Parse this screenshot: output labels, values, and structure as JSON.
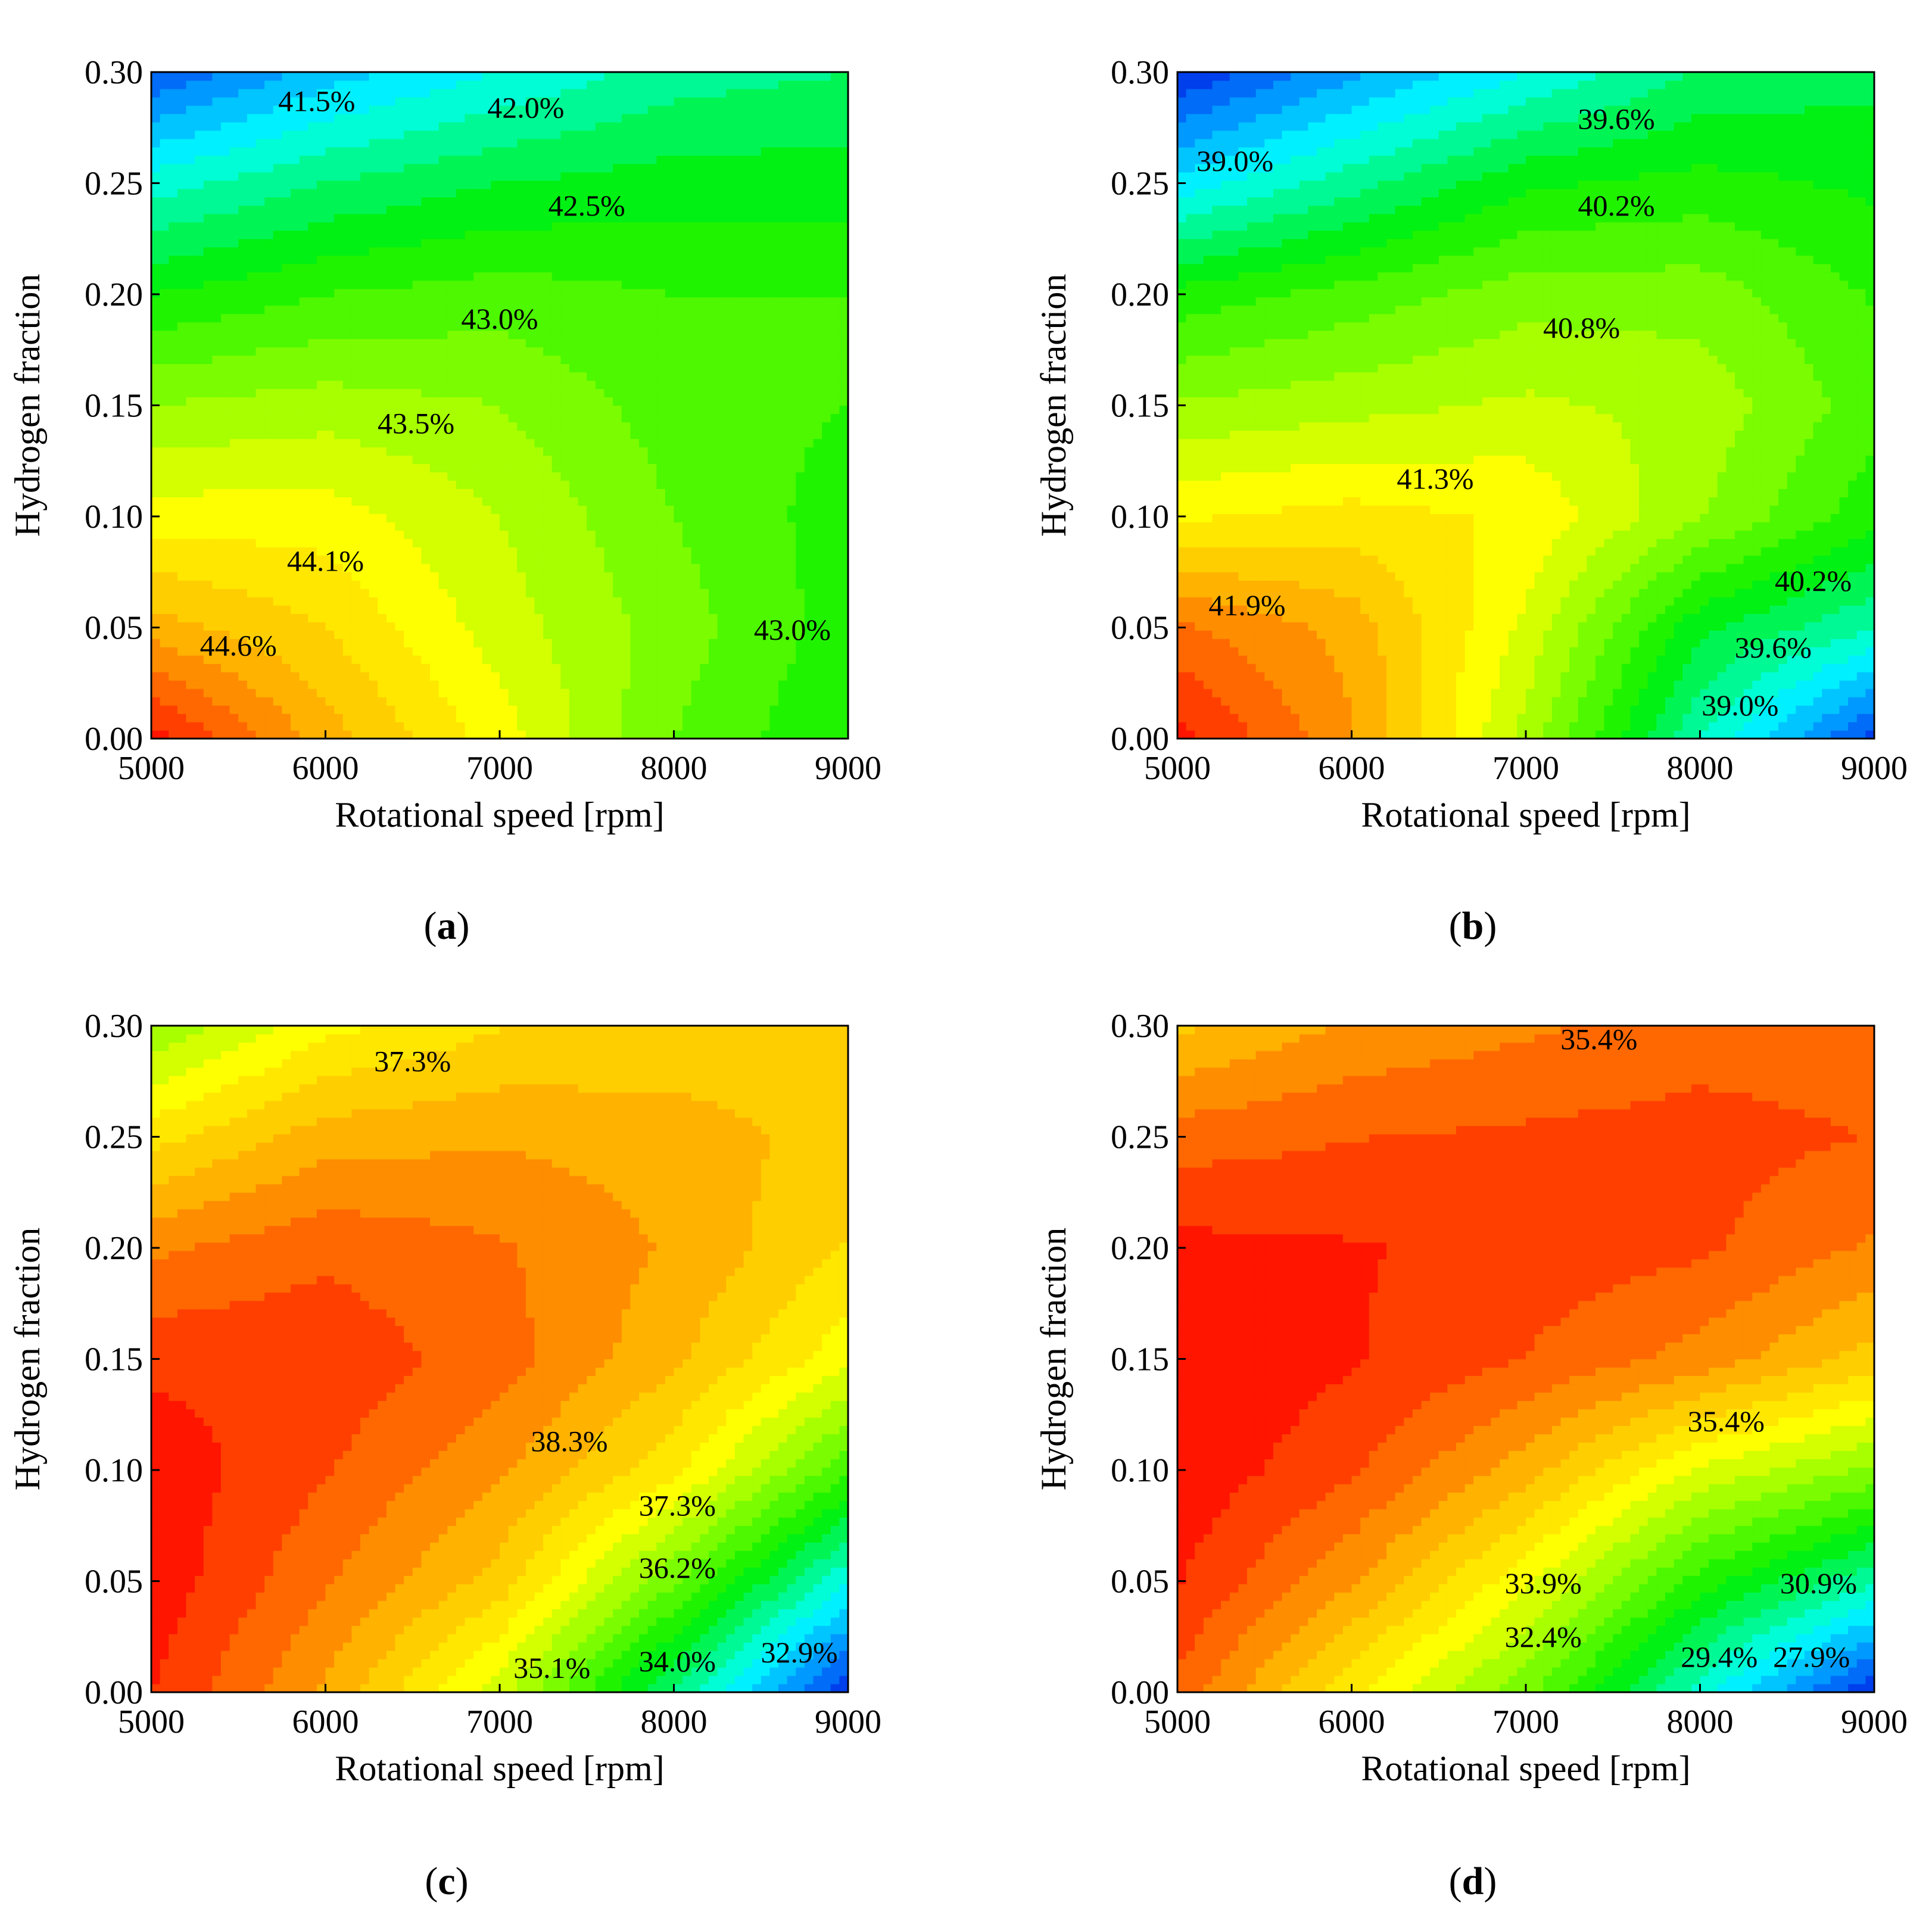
{
  "chart_data": [
    {
      "type": "heatmap",
      "panel": "a",
      "caption_letter": "a",
      "xlabel": "Rotational speed [rpm]",
      "ylabel": "Hydrogen fraction",
      "xlim": [
        5000,
        9000
      ],
      "ylim": [
        0.0,
        0.3
      ],
      "xticks": [
        "5000",
        "6000",
        "7000",
        "8000",
        "9000"
      ],
      "yticks": [
        "0.00",
        "0.05",
        "0.10",
        "0.15",
        "0.20",
        "0.25",
        "0.30"
      ],
      "x": [
        5000,
        6000,
        7000,
        8000,
        9000
      ],
      "y": [
        0.0,
        0.05,
        0.1,
        0.15,
        0.2,
        0.25,
        0.3
      ],
      "z": [
        [
          45.3,
          44.5,
          43.9,
          43.2,
          42.8
        ],
        [
          44.5,
          44.2,
          43.7,
          43.3,
          42.9
        ],
        [
          43.9,
          43.9,
          43.6,
          43.2,
          42.9
        ],
        [
          43.4,
          43.5,
          43.4,
          43.1,
          43.0
        ],
        [
          42.8,
          43.0,
          43.1,
          43.0,
          43.0
        ],
        [
          42.1,
          42.4,
          42.6,
          42.7,
          42.7
        ],
        [
          41.2,
          41.7,
          42.0,
          42.3,
          42.4
        ]
      ],
      "color_range": [
        41.0,
        45.4
      ],
      "contour_labels": [
        {
          "text": "41.5%",
          "x": 5950,
          "y": 0.287
        },
        {
          "text": "42.0%",
          "x": 7150,
          "y": 0.284
        },
        {
          "text": "42.5%",
          "x": 7500,
          "y": 0.24
        },
        {
          "text": "43.0%",
          "x": 7000,
          "y": 0.189
        },
        {
          "text": "43.5%",
          "x": 6520,
          "y": 0.142
        },
        {
          "text": "44.1%",
          "x": 6000,
          "y": 0.08
        },
        {
          "text": "44.6%",
          "x": 5500,
          "y": 0.042
        },
        {
          "text": "43.0%",
          "x": 8680,
          "y": 0.049
        }
      ]
    },
    {
      "type": "heatmap",
      "panel": "b",
      "caption_letter": "b",
      "xlabel": "Rotational speed [rpm]",
      "ylabel": "Hydrogen fraction",
      "xlim": [
        5000,
        9000
      ],
      "ylim": [
        0.0,
        0.3
      ],
      "xticks": [
        "5000",
        "6000",
        "7000",
        "8000",
        "9000"
      ],
      "yticks": [
        "0.00",
        "0.05",
        "0.10",
        "0.15",
        "0.20",
        "0.25",
        "0.30"
      ],
      "x": [
        5000,
        6000,
        7000,
        8000,
        9000
      ],
      "y": [
        0.0,
        0.05,
        0.1,
        0.15,
        0.2,
        0.25,
        0.3
      ],
      "z": [
        [
          42.4,
          41.8,
          40.8,
          39.6,
          38.6
        ],
        [
          42.0,
          41.7,
          41.0,
          40.0,
          39.6
        ],
        [
          41.2,
          41.3,
          41.2,
          40.7,
          40.2
        ],
        [
          40.7,
          40.8,
          40.9,
          40.8,
          40.4
        ],
        [
          40.2,
          40.4,
          40.6,
          40.6,
          40.3
        ],
        [
          39.3,
          39.7,
          40.1,
          40.2,
          40.1
        ],
        [
          38.5,
          39.0,
          39.4,
          39.8,
          39.9
        ]
      ],
      "color_range": [
        38.5,
        42.5
      ],
      "contour_labels": [
        {
          "text": "39.6%",
          "x": 7520,
          "y": 0.279
        },
        {
          "text": "39.0%",
          "x": 5330,
          "y": 0.26
        },
        {
          "text": "40.2%",
          "x": 7520,
          "y": 0.24
        },
        {
          "text": "40.8%",
          "x": 7320,
          "y": 0.185
        },
        {
          "text": "41.3%",
          "x": 6480,
          "y": 0.117
        },
        {
          "text": "41.9%",
          "x": 5400,
          "y": 0.06
        },
        {
          "text": "40.2%",
          "x": 8650,
          "y": 0.071
        },
        {
          "text": "39.6%",
          "x": 8420,
          "y": 0.041
        },
        {
          "text": "39.0%",
          "x": 8230,
          "y": 0.015
        }
      ]
    },
    {
      "type": "heatmap",
      "panel": "c",
      "caption_letter": "c",
      "xlabel": "Rotational speed [rpm]",
      "ylabel": "Hydrogen fraction",
      "xlim": [
        5000,
        9000
      ],
      "ylim": [
        0.0,
        0.3
      ],
      "xticks": [
        "5000",
        "6000",
        "7000",
        "8000",
        "9000"
      ],
      "yticks": [
        "0.00",
        "0.05",
        "0.10",
        "0.15",
        "0.20",
        "0.25",
        "0.30"
      ],
      "x": [
        5000,
        6000,
        7000,
        8000,
        9000
      ],
      "y": [
        0.0,
        0.05,
        0.1,
        0.15,
        0.2,
        0.25,
        0.3
      ],
      "z": [
        [
          39.0,
          38.0,
          36.6,
          34.5,
          32.4
        ],
        [
          39.2,
          38.4,
          37.6,
          35.9,
          34.0
        ],
        [
          39.2,
          38.7,
          38.1,
          37.2,
          35.6
        ],
        [
          38.9,
          38.9,
          38.5,
          37.8,
          36.9
        ],
        [
          38.3,
          38.6,
          38.4,
          38.0,
          37.4
        ],
        [
          37.3,
          37.9,
          38.0,
          37.9,
          37.6
        ],
        [
          36.2,
          37.0,
          37.4,
          37.5,
          37.5
        ]
      ],
      "color_range": [
        32.4,
        39.3
      ],
      "contour_labels": [
        {
          "text": "37.3%",
          "x": 6500,
          "y": 0.284
        },
        {
          "text": "38.3%",
          "x": 7400,
          "y": 0.113
        },
        {
          "text": "37.3%",
          "x": 8020,
          "y": 0.084
        },
        {
          "text": "36.2%",
          "x": 8020,
          "y": 0.056
        },
        {
          "text": "35.1%",
          "x": 7300,
          "y": 0.011
        },
        {
          "text": "34.0%",
          "x": 8020,
          "y": 0.014
        },
        {
          "text": "32.9%",
          "x": 8720,
          "y": 0.018
        }
      ]
    },
    {
      "type": "heatmap",
      "panel": "d",
      "caption_letter": "d",
      "xlabel": "Rotational speed [rpm]",
      "ylabel": "Hydrogen fraction",
      "xlim": [
        5000,
        9000
      ],
      "ylim": [
        0.0,
        0.3
      ],
      "xticks": [
        "5000",
        "6000",
        "7000",
        "8000",
        "9000"
      ],
      "yticks": [
        "0.00",
        "0.05",
        "0.10",
        "0.15",
        "0.20",
        "0.25",
        "0.30"
      ],
      "x": [
        5000,
        6000,
        7000,
        8000,
        9000
      ],
      "y": [
        0.0,
        0.05,
        0.1,
        0.15,
        0.2,
        0.25,
        0.3
      ],
      "z": [
        [
          36.0,
          34.0,
          32.3,
          29.7,
          27.3
        ],
        [
          36.6,
          35.3,
          33.6,
          31.5,
          30.0
        ],
        [
          36.9,
          36.2,
          35.0,
          33.4,
          32.5
        ],
        [
          37.0,
          36.6,
          36.1,
          35.5,
          34.6
        ],
        [
          36.7,
          36.6,
          36.4,
          36.2,
          35.6
        ],
        [
          35.9,
          36.1,
          36.2,
          36.3,
          36.1
        ],
        [
          34.7,
          35.3,
          35.6,
          35.9,
          35.9
        ]
      ],
      "color_range": [
        27.3,
        37.0
      ],
      "contour_labels": [
        {
          "text": "35.4%",
          "x": 7420,
          "y": 0.294
        },
        {
          "text": "35.4%",
          "x": 8150,
          "y": 0.122
        },
        {
          "text": "33.9%",
          "x": 7100,
          "y": 0.049
        },
        {
          "text": "32.4%",
          "x": 7100,
          "y": 0.025
        },
        {
          "text": "30.9%",
          "x": 8680,
          "y": 0.049
        },
        {
          "text": "29.4%",
          "x": 8110,
          "y": 0.016
        },
        {
          "text": "27.9%",
          "x": 8640,
          "y": 0.016
        }
      ]
    }
  ]
}
